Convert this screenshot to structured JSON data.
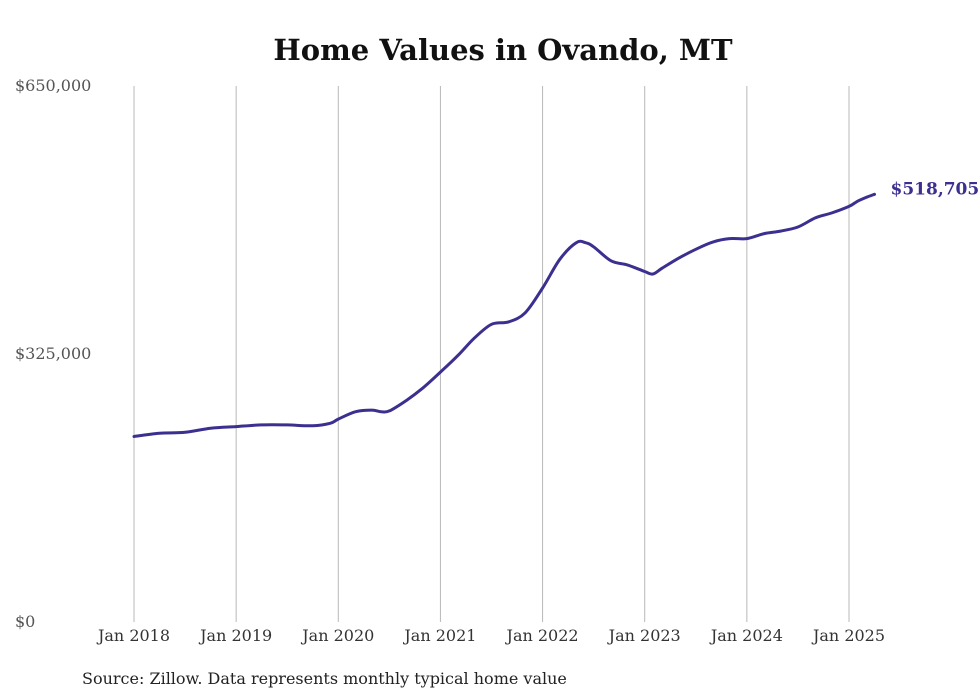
{
  "chart_data": {
    "type": "line",
    "title": "Home Values in Ovando, MT",
    "xlabel": "",
    "ylabel": "",
    "ylim": [
      0,
      650000
    ],
    "yticks": [
      {
        "value": 0,
        "label": "$0"
      },
      {
        "value": 325000,
        "label": "$325,000"
      },
      {
        "value": 650000,
        "label": "$650,000"
      }
    ],
    "xticks": [
      {
        "value": 2018.0,
        "label": "Jan 2018"
      },
      {
        "value": 2019.0,
        "label": "Jan 2019"
      },
      {
        "value": 2020.0,
        "label": "Jan 2020"
      },
      {
        "value": 2021.0,
        "label": "Jan 2021"
      },
      {
        "value": 2022.0,
        "label": "Jan 2022"
      },
      {
        "value": 2023.0,
        "label": "Jan 2023"
      },
      {
        "value": 2024.0,
        "label": "Jan 2024"
      },
      {
        "value": 2025.0,
        "label": "Jan 2025"
      }
    ],
    "grid": "vertical",
    "series_color": "#3b2f8f",
    "series": [
      {
        "name": "",
        "x": [
          2018.0,
          2018.25,
          2018.5,
          2018.75,
          2019.0,
          2019.25,
          2019.5,
          2019.75,
          2019.92,
          2020.0,
          2020.17,
          2020.33,
          2020.42,
          2020.5,
          2020.67,
          2020.83,
          2021.0,
          2021.17,
          2021.33,
          2021.5,
          2021.67,
          2021.83,
          2022.0,
          2022.17,
          2022.33,
          2022.42,
          2022.5,
          2022.67,
          2022.83,
          2023.0,
          2023.08,
          2023.17,
          2023.33,
          2023.5,
          2023.67,
          2023.83,
          2024.0,
          2024.17,
          2024.33,
          2024.5,
          2024.67,
          2024.83,
          2025.0,
          2025.08,
          2025.17,
          2025.25
        ],
        "values": [
          225000,
          229000,
          230000,
          235000,
          237000,
          239000,
          239000,
          238000,
          241000,
          246000,
          255000,
          257000,
          255000,
          256000,
          269000,
          284000,
          303000,
          323000,
          344000,
          361000,
          364000,
          375000,
          405000,
          440000,
          460000,
          460000,
          455000,
          438000,
          433000,
          425000,
          422000,
          429000,
          441000,
          452000,
          461000,
          465000,
          465000,
          471000,
          474000,
          479000,
          490000,
          496000,
          504000,
          510000,
          515000,
          518705
        ]
      }
    ],
    "end_label": "$518,705"
  },
  "source_note": "Source: Zillow. Data represents monthly typical home value"
}
